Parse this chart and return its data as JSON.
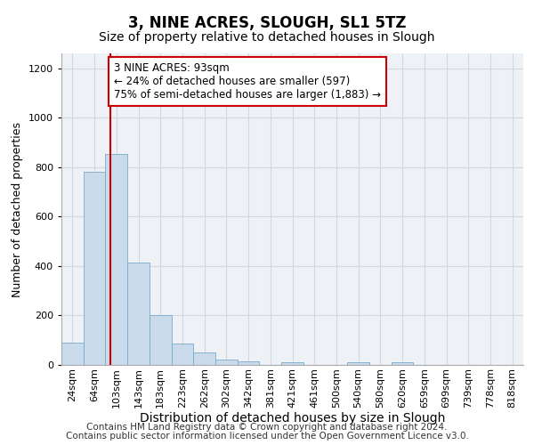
{
  "title": "3, NINE ACRES, SLOUGH, SL1 5TZ",
  "subtitle": "Size of property relative to detached houses in Slough",
  "xlabel": "Distribution of detached houses by size in Slough",
  "ylabel": "Number of detached properties",
  "categories": [
    "24sqm",
    "64sqm",
    "103sqm",
    "143sqm",
    "183sqm",
    "223sqm",
    "262sqm",
    "302sqm",
    "342sqm",
    "381sqm",
    "421sqm",
    "461sqm",
    "500sqm",
    "540sqm",
    "580sqm",
    "620sqm",
    "659sqm",
    "699sqm",
    "739sqm",
    "778sqm",
    "818sqm"
  ],
  "values": [
    90,
    780,
    855,
    415,
    200,
    85,
    50,
    22,
    16,
    0,
    12,
    0,
    0,
    10,
    0,
    10,
    0,
    0,
    0,
    0,
    0
  ],
  "bar_color": "#c9daea",
  "bar_edge_color": "#7aaac8",
  "grid_color": "#d0d8e0",
  "background_color": "#eef2f7",
  "annotation_text": "3 NINE ACRES: 93sqm\n← 24% of detached houses are smaller (597)\n75% of semi-detached houses are larger (1,883) →",
  "ylim": [
    0,
    1260
  ],
  "yticks": [
    0,
    200,
    400,
    600,
    800,
    1000,
    1200
  ],
  "footer_line1": "Contains HM Land Registry data © Crown copyright and database right 2024.",
  "footer_line2": "Contains public sector information licensed under the Open Government Licence v3.0.",
  "vline_color": "#cc0000",
  "annotation_box_color": "#cc0000",
  "title_fontsize": 12,
  "subtitle_fontsize": 10,
  "xlabel_fontsize": 10,
  "ylabel_fontsize": 9,
  "tick_fontsize": 8,
  "annotation_fontsize": 8.5,
  "footer_fontsize": 7.5
}
